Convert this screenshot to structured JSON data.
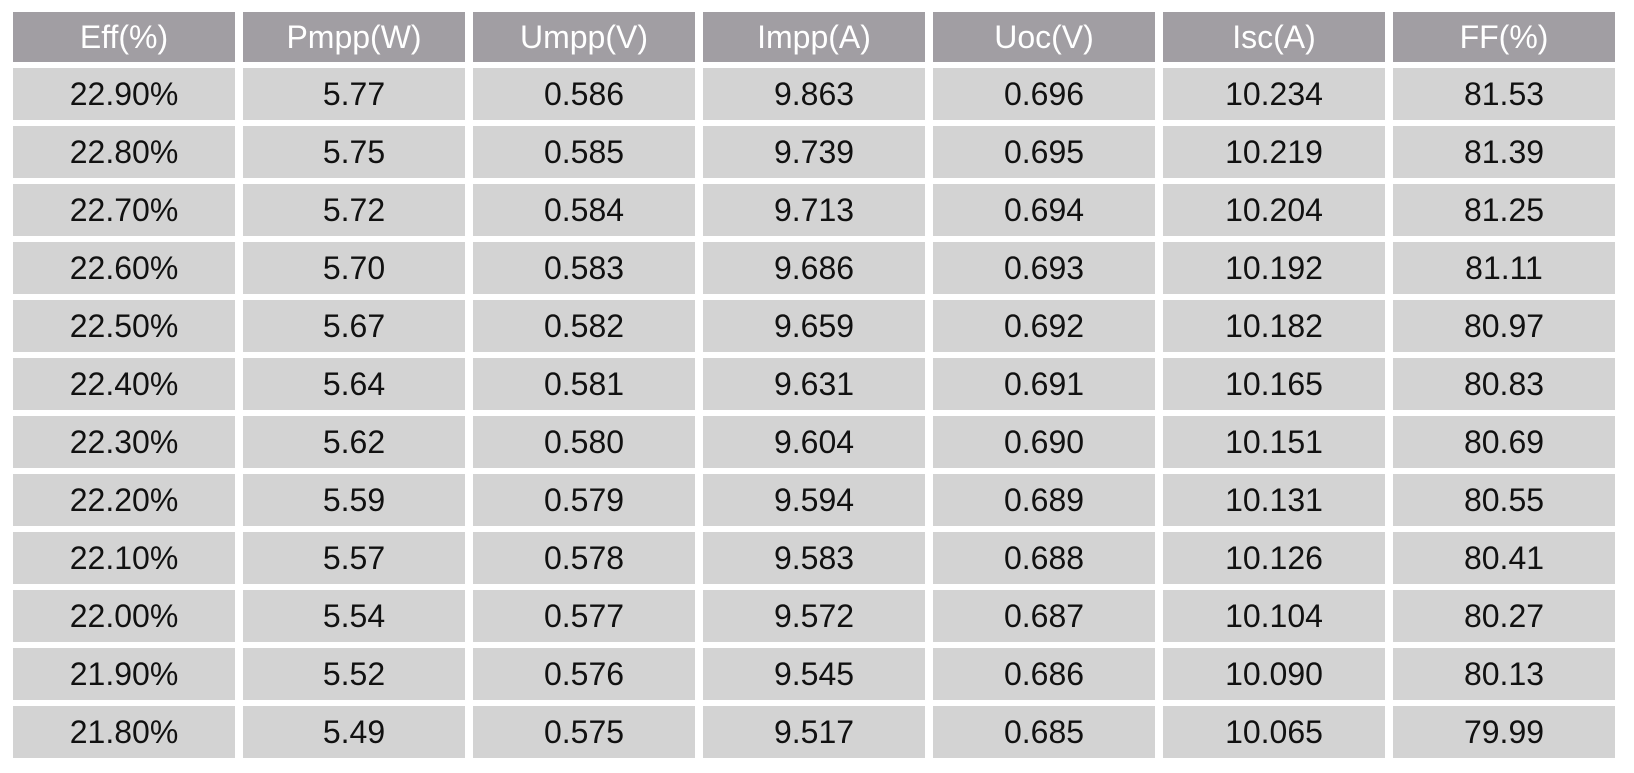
{
  "table": {
    "headers": [
      "Eff(%)",
      "Pmpp(W)",
      "Umpp(V)",
      "Impp(A)",
      "Uoc(V)",
      "Isc(A)",
      "FF(%)"
    ],
    "rows": [
      [
        "22.90%",
        "5.77",
        "0.586",
        "9.863",
        "0.696",
        "10.234",
        "81.53"
      ],
      [
        "22.80%",
        "5.75",
        "0.585",
        "9.739",
        "0.695",
        "10.219",
        "81.39"
      ],
      [
        "22.70%",
        "5.72",
        "0.584",
        "9.713",
        "0.694",
        "10.204",
        "81.25"
      ],
      [
        "22.60%",
        "5.70",
        "0.583",
        "9.686",
        "0.693",
        "10.192",
        "81.11"
      ],
      [
        "22.50%",
        "5.67",
        "0.582",
        "9.659",
        "0.692",
        "10.182",
        "80.97"
      ],
      [
        "22.40%",
        "5.64",
        "0.581",
        "9.631",
        "0.691",
        "10.165",
        "80.83"
      ],
      [
        "22.30%",
        "5.62",
        "0.580",
        "9.604",
        "0.690",
        "10.151",
        "80.69"
      ],
      [
        "22.20%",
        "5.59",
        "0.579",
        "9.594",
        "0.689",
        "10.131",
        "80.55"
      ],
      [
        "22.10%",
        "5.57",
        "0.578",
        "9.583",
        "0.688",
        "10.126",
        "80.41"
      ],
      [
        "22.00%",
        "5.54",
        "0.577",
        "9.572",
        "0.687",
        "10.104",
        "80.27"
      ],
      [
        "21.90%",
        "5.52",
        "0.576",
        "9.545",
        "0.686",
        "10.090",
        "80.13"
      ],
      [
        "21.80%",
        "5.49",
        "0.575",
        "9.517",
        "0.685",
        "10.065",
        "79.99"
      ]
    ]
  },
  "colors": {
    "header_bg": "#a19ea3",
    "header_text": "#ffffff",
    "cell_bg": "#d3d3d3",
    "cell_text": "#111111"
  }
}
